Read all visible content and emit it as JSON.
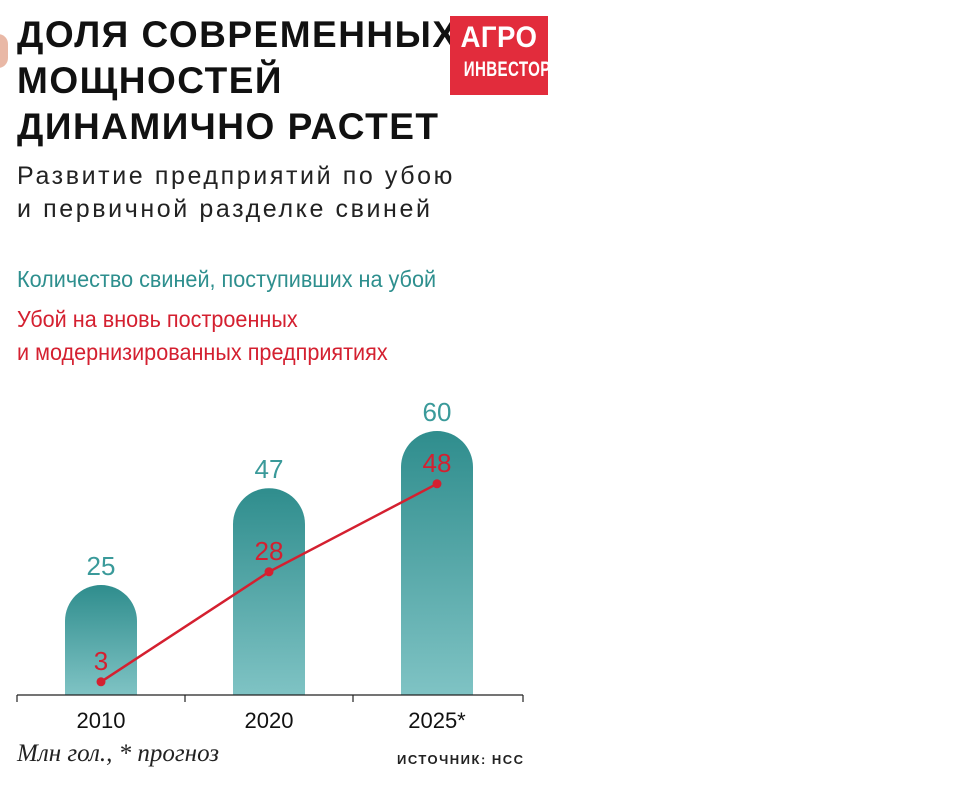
{
  "title": "ДОЛЯ СОВРЕМЕННЫХ\nМОЩНОСТЕЙ\nДИНАМИЧНО РАСТЕТ",
  "subtitle": "Развитие предприятий по убою\nи первичной разделке свиней",
  "logo": {
    "line1": "АГРО",
    "line2": "ИНВЕСТОР"
  },
  "legend": {
    "teal": "Количество свиней, поступивших на убой",
    "red": "Убой на вновь построенных\nи модернизированных предприятиях"
  },
  "footnote": "Млн гол., * прогноз",
  "source": "ИСТОЧНИК: НСС",
  "colors": {
    "teal": "#3a9a9a",
    "red": "#d42030",
    "accent": "#e22c3c"
  },
  "chart_data": {
    "type": "bar",
    "categories": [
      "2010",
      "2020",
      "2025*"
    ],
    "series": [
      {
        "name": "Количество свиней, поступивших на убой",
        "type": "bar",
        "values": [
          25,
          47,
          60
        ]
      },
      {
        "name": "Убой на вновь построенных и модернизированных предприятиях",
        "type": "line",
        "values": [
          3,
          28,
          48
        ]
      }
    ],
    "title": "ДОЛЯ СОВРЕМЕННЫХ МОЩНОСТЕЙ ДИНАМИЧНО РАСТЕТ",
    "subtitle": "Развитие предприятий по убою и первичной разделке свиней",
    "ylabel": "Млн гол.",
    "ylim": [
      0,
      60
    ],
    "grid": false,
    "legend_position": "top-left"
  }
}
